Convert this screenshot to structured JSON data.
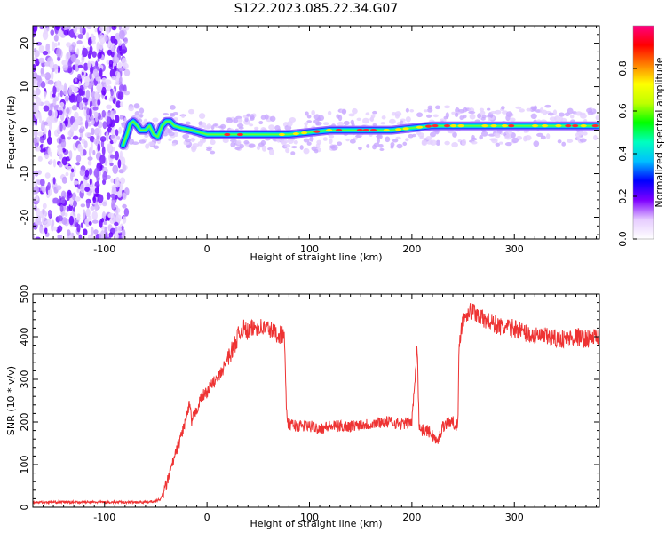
{
  "figure": {
    "title": "S122.2023.085.22.34.G07"
  },
  "chart_data": [
    {
      "type": "heatmap",
      "name": "spectrogram",
      "xlabel": "Height of straight line (km)",
      "ylabel": "Frequency (Hz)",
      "xlim": [
        -170,
        383
      ],
      "ylim": [
        -25,
        24
      ],
      "x_ticks": [
        -100,
        0,
        100,
        200,
        300
      ],
      "y_ticks": [
        -20,
        -10,
        0,
        10,
        20
      ],
      "colorbar": {
        "label": "Normalized spectral amplitude",
        "range": [
          0,
          1
        ],
        "ticks": [
          0.0,
          0.2,
          0.4,
          0.6,
          0.8
        ],
        "tick_labels": [
          "0.0",
          "0.2",
          "0.4",
          "0.6",
          "0.8"
        ],
        "colors": [
          "#ffffff",
          "#e6ccff",
          "#7f00ff",
          "#0000ff",
          "#00bfff",
          "#00ffbf",
          "#00ff00",
          "#bfff00",
          "#ffff00",
          "#ff8000",
          "#ff0000",
          "#ff0080"
        ]
      },
      "noise_region_x": [
        -170,
        -78
      ],
      "peak_frequency_track": {
        "x": [
          -82,
          -78,
          -75,
          -72,
          -68,
          -65,
          -60,
          -56,
          -52,
          -48,
          -44,
          -40,
          -36,
          -32,
          -25,
          -15,
          0,
          20,
          40,
          60,
          80,
          100,
          120,
          150,
          180,
          200,
          220,
          250,
          300,
          340,
          383
        ],
        "y": [
          -3.5,
          -1,
          1.5,
          2,
          1,
          0,
          0,
          1,
          -1,
          -1.5,
          1,
          2,
          2,
          1,
          0.5,
          0,
          -1,
          -1,
          -1,
          -1,
          -1,
          -0.5,
          0,
          0,
          0,
          0.5,
          1,
          1,
          1,
          1,
          1
        ]
      }
    },
    {
      "type": "line",
      "name": "snr",
      "xlabel": "Height of straight line (km)",
      "ylabel": "SNR (10 * v/v)",
      "xlim": [
        -170,
        383
      ],
      "ylim": [
        0,
        500
      ],
      "x_ticks": [
        -100,
        0,
        100,
        200,
        300
      ],
      "y_ticks": [
        0,
        100,
        200,
        300,
        400,
        500
      ],
      "color": "#ee3333",
      "series": [
        {
          "x": [
            -170,
            -150,
            -120,
            -100,
            -80,
            -60,
            -50,
            -45,
            -40,
            -35,
            -30,
            -25,
            -20,
            -17,
            -15,
            -10,
            -5,
            0,
            5,
            10,
            15,
            20,
            25,
            30,
            35,
            40,
            45,
            50,
            55,
            60,
            65,
            70,
            75,
            76,
            78,
            80,
            90,
            100,
            110,
            120,
            130,
            140,
            150,
            160,
            170,
            180,
            190,
            200,
            203,
            205,
            207,
            210,
            215,
            220,
            225,
            230,
            235,
            240,
            245,
            246,
            248,
            250,
            255,
            260,
            265,
            270,
            280,
            290,
            300,
            310,
            320,
            330,
            340,
            350,
            360,
            370,
            383
          ],
          "y": [
            12,
            12,
            12,
            12,
            12,
            12,
            14,
            20,
            50,
            90,
            130,
            170,
            210,
            240,
            200,
            230,
            260,
            270,
            290,
            300,
            320,
            350,
            370,
            400,
            420,
            410,
            420,
            425,
            420,
            420,
            410,
            405,
            405,
            360,
            200,
            195,
            190,
            190,
            185,
            190,
            190,
            190,
            195,
            195,
            200,
            200,
            195,
            200,
            300,
            400,
            190,
            180,
            180,
            170,
            150,
            190,
            200,
            200,
            190,
            380,
            420,
            440,
            460,
            460,
            450,
            440,
            430,
            420,
            420,
            410,
            400,
            400,
            395,
            395,
            400,
            395,
            400
          ]
        }
      ]
    }
  ]
}
